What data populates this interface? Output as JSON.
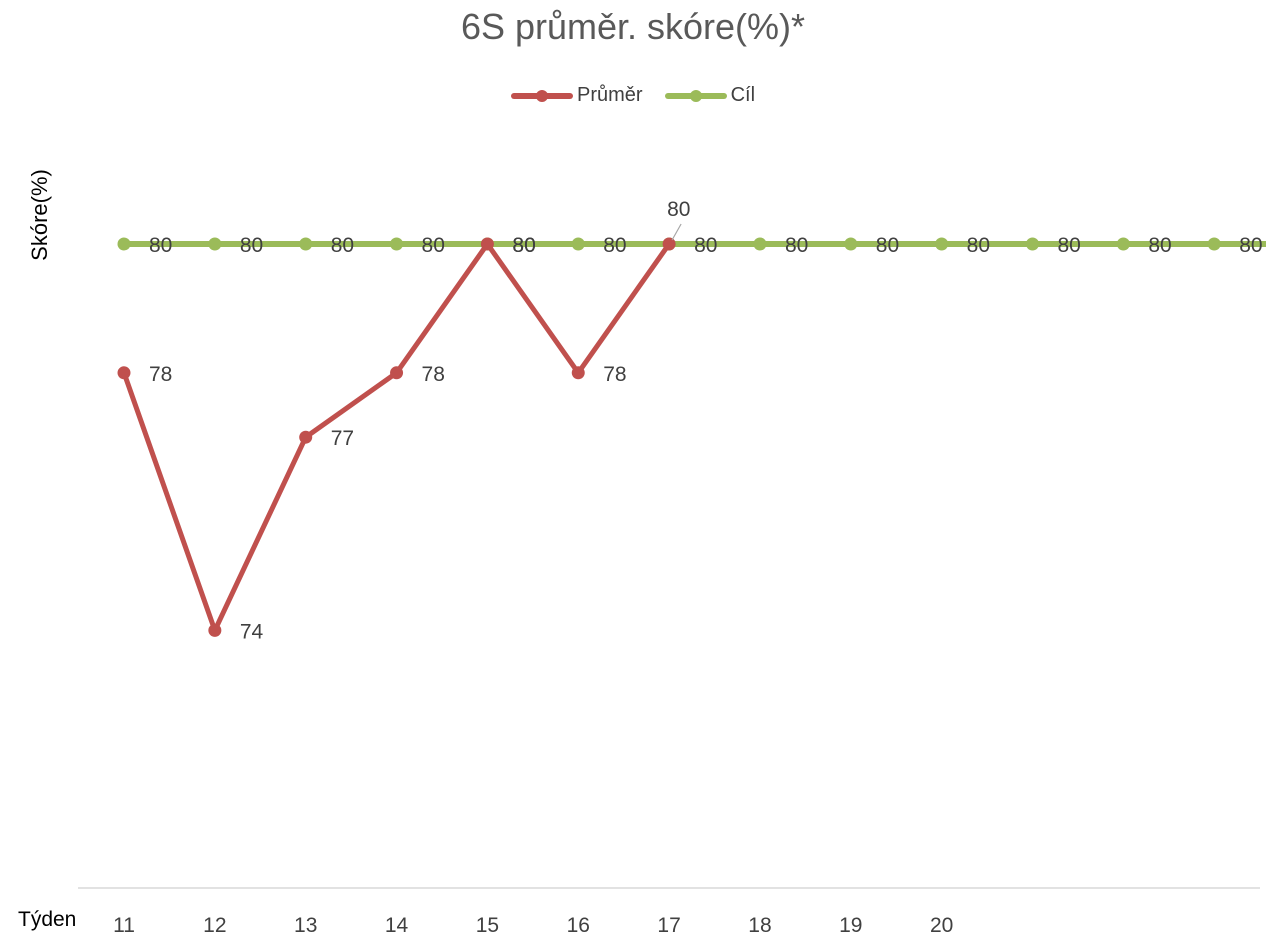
{
  "chart_data": {
    "type": "line",
    "title": "6S průměr. skóre(%)*",
    "xlabel": "Týden",
    "ylabel": "Skóre(%)",
    "categories": [
      "11",
      "12",
      "13",
      "14",
      "15",
      "16",
      "17",
      "18",
      "19",
      "20",
      "",
      "",
      "",
      ""
    ],
    "ylim": [
      70,
      82.5
    ],
    "grid": false,
    "legend_position": "top",
    "series": [
      {
        "name": "Průměr",
        "color": "#C0504D",
        "values": [
          78,
          74,
          77,
          78,
          80,
          78,
          80,
          null,
          null,
          null,
          null,
          null,
          null,
          null
        ],
        "labels": [
          "78",
          "74",
          "77",
          "78",
          "80",
          "78",
          "80",
          "",
          "",
          "",
          "",
          "",
          "",
          ""
        ]
      },
      {
        "name": "Cíl",
        "color": "#9BBB59",
        "values": [
          80,
          80,
          80,
          80,
          80,
          80,
          80,
          80,
          80,
          80,
          80,
          80,
          80,
          80
        ],
        "labels": [
          "80",
          "80",
          "80",
          "80",
          "80",
          "80",
          "80",
          "80",
          "80",
          "80",
          "80",
          "80",
          "80",
          "80"
        ]
      }
    ]
  }
}
